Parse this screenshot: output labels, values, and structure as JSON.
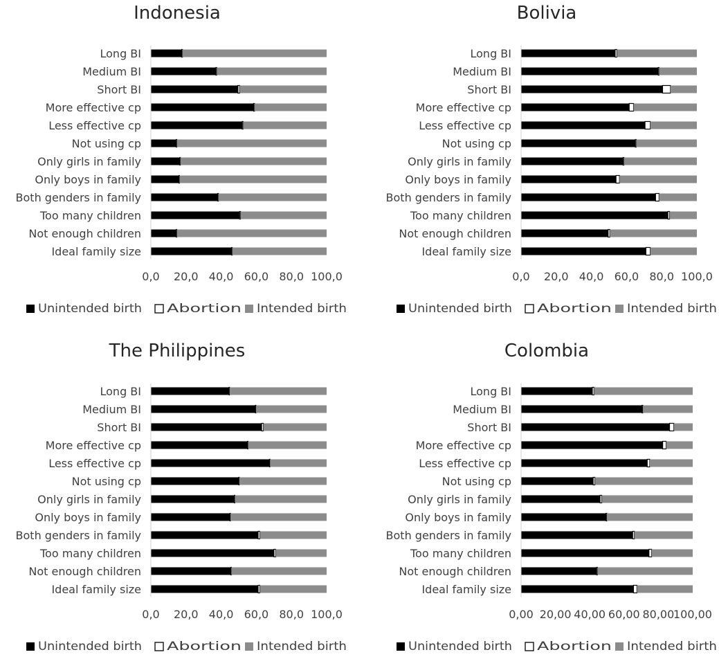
{
  "chart_data": [
    {
      "type": "bar",
      "title": "Indonesia",
      "stacked": true,
      "orientation": "horizontal",
      "categories": [
        "Long BI",
        "Medium BI",
        "Short BI",
        "More effective cp",
        "Less effective cp",
        "Not using cp",
        "Only girls in family",
        "Only boys in family",
        "Both genders in family",
        "Too many children",
        "Not enough children",
        "Ideal family size"
      ],
      "series": [
        {
          "name": "Unintended birth",
          "color": "#000000",
          "values": [
            17.5,
            37.0,
            49.5,
            58.5,
            52.0,
            14.5,
            16.5,
            16.0,
            38.0,
            50.5,
            14.5,
            46.0
          ]
        },
        {
          "name": "Abortion",
          "color": "#ffffff",
          "values": [
            0.5,
            0.5,
            1.0,
            0.5,
            0.5,
            0.3,
            0.3,
            0.3,
            0.5,
            0.5,
            0.3,
            0.3
          ]
        },
        {
          "name": "Intended birth",
          "color": "#8c8c8c",
          "values": [
            82.0,
            62.5,
            49.5,
            41.0,
            47.5,
            85.2,
            83.2,
            83.7,
            61.5,
            49.0,
            85.2,
            53.7
          ]
        }
      ],
      "xlim": [
        0,
        100
      ],
      "xticks": [
        "0,0",
        "20,0",
        "40,0",
        "60,0",
        "80,0",
        "100,0"
      ],
      "legend": "bottom",
      "grid": false
    },
    {
      "type": "bar",
      "title": "Bolivia",
      "stacked": true,
      "orientation": "horizontal",
      "categories": [
        "Long BI",
        "Medium BI",
        "Short BI",
        "More effective cp",
        "Less effective cp",
        "Not using cp",
        "Only girls in family",
        "Only boys in family",
        "Both genders in family",
        "Too many children",
        "Not enough children",
        "Ideal family size"
      ],
      "series": [
        {
          "name": "Unintended birth",
          "color": "#000000",
          "values": [
            53.5,
            78.0,
            80.5,
            61.5,
            70.5,
            65.0,
            58.0,
            54.0,
            76.5,
            83.5,
            49.5,
            71.0
          ]
        },
        {
          "name": "Abortion",
          "color": "#ffffff",
          "values": [
            1.0,
            0.5,
            4.5,
            2.5,
            3.0,
            0.5,
            0.5,
            2.0,
            2.0,
            1.0,
            1.0,
            2.5
          ]
        },
        {
          "name": "Intended birth",
          "color": "#8c8c8c",
          "values": [
            45.5,
            21.5,
            15.0,
            36.0,
            26.5,
            34.5,
            41.5,
            44.0,
            21.5,
            15.5,
            49.5,
            26.5
          ]
        }
      ],
      "xlim": [
        0,
        100
      ],
      "xticks": [
        "0,0",
        "20,0",
        "40,0",
        "60,0",
        "80,0",
        "100,0"
      ],
      "legend": "bottom",
      "grid": false
    },
    {
      "type": "bar",
      "title": "The Philippines",
      "stacked": true,
      "orientation": "horizontal",
      "categories": [
        "Long BI",
        "Medium BI",
        "Short BI",
        "More effective cp",
        "Less effective cp",
        "Not using cp",
        "Only girls in family",
        "Only boys in family",
        "Both genders in family",
        "Too many children",
        "Not enough children",
        "Ideal family size"
      ],
      "series": [
        {
          "name": "Unintended birth",
          "color": "#000000",
          "values": [
            44.5,
            59.5,
            63.0,
            55.0,
            67.5,
            50.0,
            47.5,
            45.0,
            61.0,
            70.0,
            45.5,
            61.0
          ]
        },
        {
          "name": "Abortion",
          "color": "#ffffff",
          "values": [
            0.3,
            0.3,
            1.0,
            0.3,
            0.3,
            0.3,
            0.3,
            0.3,
            1.0,
            1.0,
            0.3,
            1.0
          ]
        },
        {
          "name": "Intended birth",
          "color": "#8c8c8c",
          "values": [
            55.2,
            40.2,
            36.0,
            44.7,
            32.2,
            49.7,
            52.2,
            54.7,
            38.0,
            29.0,
            54.2,
            38.0
          ]
        }
      ],
      "xlim": [
        0,
        100
      ],
      "xticks": [
        "0,0",
        "20,0",
        "40,0",
        "60,0",
        "80,0",
        "100,0"
      ],
      "legend": "bottom",
      "grid": false
    },
    {
      "type": "bar",
      "title": "Colombia",
      "stacked": true,
      "orientation": "horizontal",
      "categories": [
        "Long BI",
        "Medium BI",
        "Short BI",
        "More effective cp",
        "Less effective cp",
        "Not using cp",
        "Only girls in family",
        "Only boys in family",
        "Both genders in family",
        "Too many children",
        "Not enough children",
        "Ideal family size"
      ],
      "series": [
        {
          "name": "Unintended birth",
          "color": "#000000",
          "values": [
            41.5,
            70.5,
            86.5,
            82.5,
            73.5,
            42.0,
            46.0,
            49.5,
            65.0,
            74.5,
            44.0,
            65.5
          ]
        },
        {
          "name": "Abortion",
          "color": "#ffffff",
          "values": [
            1.0,
            0.5,
            2.5,
            2.0,
            1.5,
            1.0,
            1.0,
            0.5,
            1.0,
            1.5,
            0.5,
            2.0
          ]
        },
        {
          "name": "Intended birth",
          "color": "#8c8c8c",
          "values": [
            57.5,
            29.0,
            11.0,
            15.5,
            25.0,
            57.0,
            53.0,
            50.0,
            34.0,
            24.0,
            55.5,
            32.5
          ]
        }
      ],
      "xlim": [
        0,
        100
      ],
      "xticks": [
        "0,00",
        "20,00",
        "40,00",
        "60,00",
        "80,00",
        "100,00"
      ],
      "legend": "bottom",
      "grid": false
    }
  ]
}
